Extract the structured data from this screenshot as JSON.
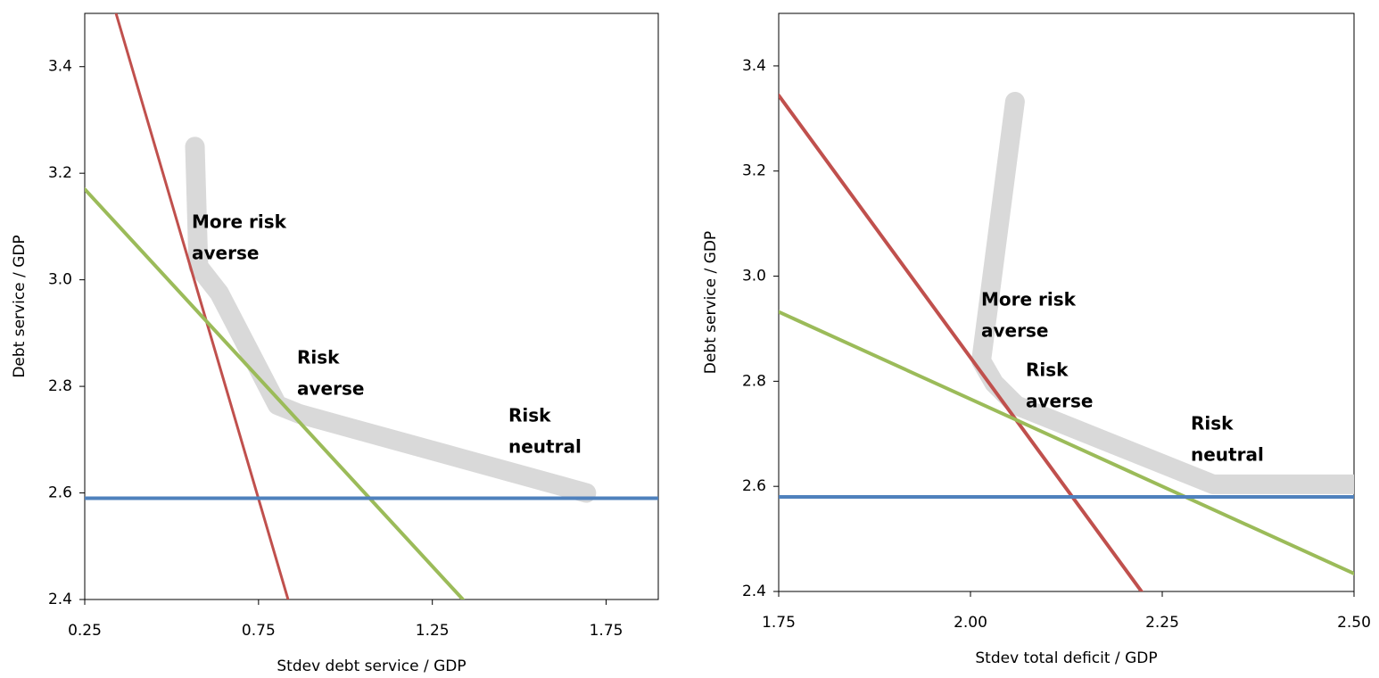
{
  "chart_data": [
    {
      "type": "line",
      "xlabel": "Stdev debt service / GDP",
      "ylabel": "Debt service / GDP",
      "xlim": [
        0.25,
        1.9
      ],
      "xticks": [
        0.25,
        0.75,
        1.25,
        1.75
      ],
      "ylim": [
        2.4,
        3.5
      ],
      "yticks": [
        2.4,
        2.6,
        2.8,
        {
          "value": 3,
          "label": "3.0"
        },
        3.2,
        3.4
      ],
      "series": [
        {
          "color": "#d9d9d9",
          "line_width": 22,
          "x": [
            0.567,
            0.577,
            0.637,
            0.804,
            0.869,
            1.693
          ],
          "values": [
            3.25,
            3.025,
            2.975,
            2.765,
            2.748,
            2.6
          ]
        },
        {
          "color": "#c0504d",
          "line_width": 3,
          "label": [
            "More risk",
            "averse"
          ],
          "x": [
            0.34,
            0.835
          ],
          "values": [
            3.5,
            2.4
          ]
        },
        {
          "color": "#9bbb59",
          "line_width": 4,
          "label": [
            "Risk",
            "averse"
          ],
          "x": [
            0.25,
            1.338
          ],
          "values": [
            3.17,
            2.4
          ]
        },
        {
          "color": "#4f81bd",
          "line_width": 4,
          "label": [
            "Risk",
            "neutral"
          ],
          "x": [
            0.25,
            1.9
          ],
          "values": [
            2.59,
            2.59
          ]
        }
      ]
    },
    {
      "type": "line",
      "xlabel": "Stdev total deficit / GDP",
      "ylabel": "Debt service / GDP",
      "xlim": [
        1.75,
        2.5
      ],
      "xticks": [
        1.75,
        {
          "value": 2,
          "label": "2.00"
        },
        2.25,
        {
          "value": 2.5,
          "label": "2.50"
        }
      ],
      "ylim": [
        2.4,
        3.5
      ],
      "yticks": [
        2.4,
        2.6,
        2.8,
        {
          "value": 3,
          "label": "3.0"
        },
        3.2,
        3.4
      ],
      "series": [
        {
          "color": "#d9d9d9",
          "line_width": 22,
          "x": [
            2.058,
            2.014,
            2.031,
            2.06,
            2.316,
            2.5
          ],
          "values": [
            3.332,
            2.839,
            2.796,
            2.754,
            2.604,
            2.604
          ]
        },
        {
          "color": "#c0504d",
          "line_width": 4,
          "label": [
            "More risk",
            "averse"
          ],
          "x": [
            1.75,
            2.223
          ],
          "values": [
            3.344,
            2.4
          ]
        },
        {
          "color": "#9bbb59",
          "line_width": 4,
          "label": [
            "Risk",
            "averse"
          ],
          "x": [
            1.75,
            2.5
          ],
          "values": [
            2.932,
            2.434
          ]
        },
        {
          "color": "#4f81bd",
          "line_width": 4,
          "label": [
            "Risk",
            "neutral"
          ],
          "x": [
            1.75,
            2.5
          ],
          "values": [
            2.58,
            2.58
          ]
        }
      ]
    }
  ]
}
